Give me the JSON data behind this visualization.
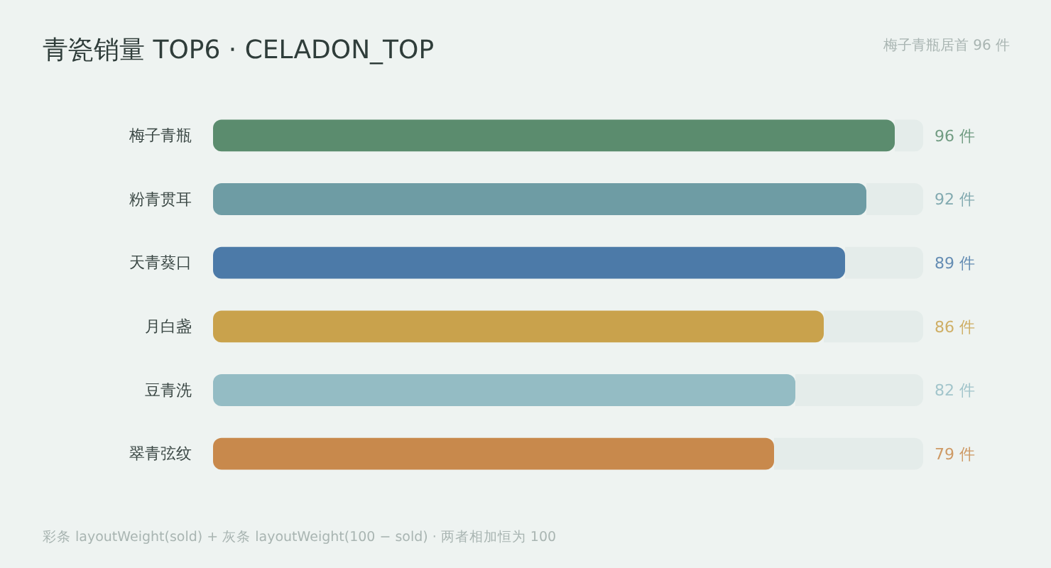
{
  "chart_data": {
    "type": "bar",
    "orientation": "horizontal",
    "stacked": true,
    "title": "青瓷销量 TOP6 · CELADON_TOP",
    "subtitle": "梅子青瓶居首 96 件",
    "annotations": [
      "彩条 layoutWeight(sold) + 灰条 layoutWeight(100 − sold) · 两者相加恒为 100"
    ],
    "categories": [
      "梅子青瓶",
      "粉青贯耳",
      "天青葵口",
      "月白盏",
      "豆青洗",
      "翠青弦纹"
    ],
    "xlim": [
      0,
      100
    ],
    "tick_labels": "y",
    "series": [
      {
        "colors": [
          "#5b8c6e",
          "#6e9ca4",
          "#4c7aa8",
          "#c9a24c",
          "#94bcc4",
          "#c8894c"
        ],
        "values": [
          96,
          92,
          89,
          86,
          82,
          79
        ],
        "value_labels": [
          "96 件",
          "92 件",
          "89 件",
          "86 件",
          "82 件",
          "79 件"
        ]
      },
      {
        "color": "#e4ecea",
        "values": [
          4,
          8,
          11,
          14,
          18,
          21
        ]
      }
    ]
  }
}
